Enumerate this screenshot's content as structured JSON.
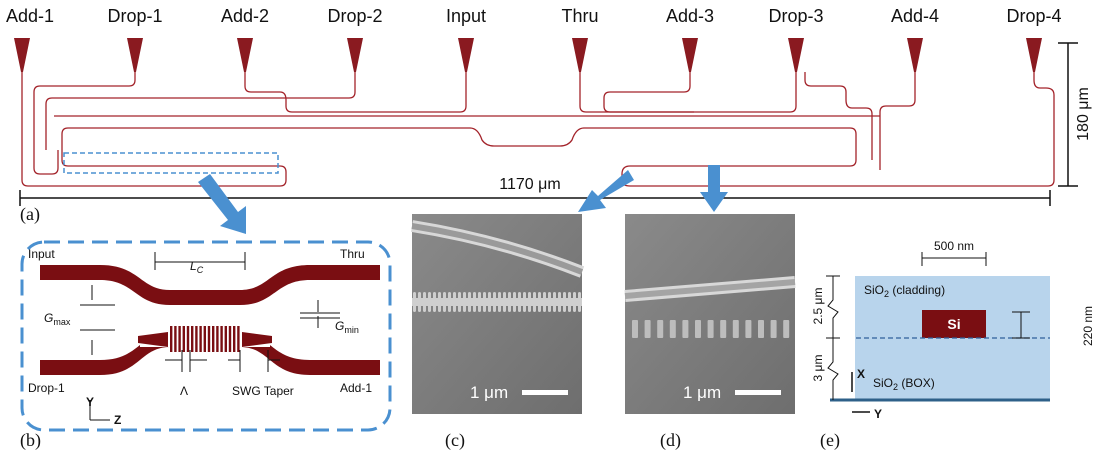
{
  "panel_a": {
    "ports": [
      "Add-1",
      "Drop-1",
      "Add-2",
      "Drop-2",
      "Input",
      "Thru",
      "Add-3",
      "Drop-3",
      "Add-4",
      "Drop-4"
    ],
    "height_label": "180 μm",
    "width_label": "1170 μm",
    "label": "(a)"
  },
  "panel_b": {
    "input": "Input",
    "thru": "Thru",
    "lc": {
      "main": "L",
      "sub": "C"
    },
    "gmax": {
      "main": "G",
      "sub": "max"
    },
    "gmin": {
      "main": "G",
      "sub": "min"
    },
    "drop": "Drop-1",
    "add": "Add-1",
    "axis_y": "Y",
    "axis_z": "Z",
    "period": "Λ",
    "taper": "SWG Taper",
    "label": "(b)"
  },
  "panel_c": {
    "scale": "1 μm",
    "label": "(c)"
  },
  "panel_d": {
    "scale": "1 μm",
    "label": "(d)"
  },
  "panel_e": {
    "width": "500 nm",
    "cladding_thickness": "2.5 μm",
    "cladding": {
      "main": "SiO",
      "sub": "2",
      "rest": " (cladding)"
    },
    "core": "Si",
    "core_thickness": "220 nm",
    "box_thickness": "3 μm",
    "axis_x": "X",
    "box": {
      "main": "SiO",
      "sub": "2",
      "rest": " (BOX)"
    },
    "axis_y": "Y",
    "label": "(e)"
  }
}
